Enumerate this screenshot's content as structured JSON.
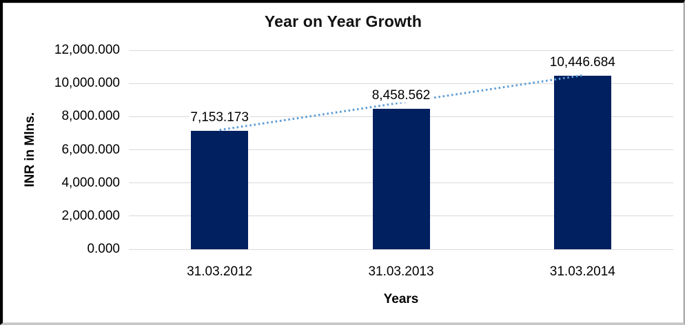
{
  "chart_data": {
    "type": "bar",
    "title": "Year on Year Growth",
    "xlabel": "Years",
    "ylabel": "INR in Mlns.",
    "categories": [
      "31.03.2012",
      "31.03.2013",
      "31.03.2014"
    ],
    "values": [
      7153.173,
      8458.562,
      10446.684
    ],
    "data_labels": [
      "7,153.173",
      "8,458.562",
      "10,446.684"
    ],
    "ylim": [
      0,
      12000
    ],
    "y_ticks": [
      0,
      2000,
      4000,
      6000,
      8000,
      10000,
      12000
    ],
    "y_tick_labels": [
      "0.000",
      "2,000.000",
      "4,000.000",
      "6,000.000",
      "8,000.000",
      "10,000.000",
      "12,000.000"
    ],
    "grid": true,
    "legend": "none",
    "bar_color": "#002060",
    "gridline_color": "#d9d9d9",
    "trendline": {
      "type": "linear",
      "style": "dotted",
      "color": "#5B9BD5"
    }
  }
}
